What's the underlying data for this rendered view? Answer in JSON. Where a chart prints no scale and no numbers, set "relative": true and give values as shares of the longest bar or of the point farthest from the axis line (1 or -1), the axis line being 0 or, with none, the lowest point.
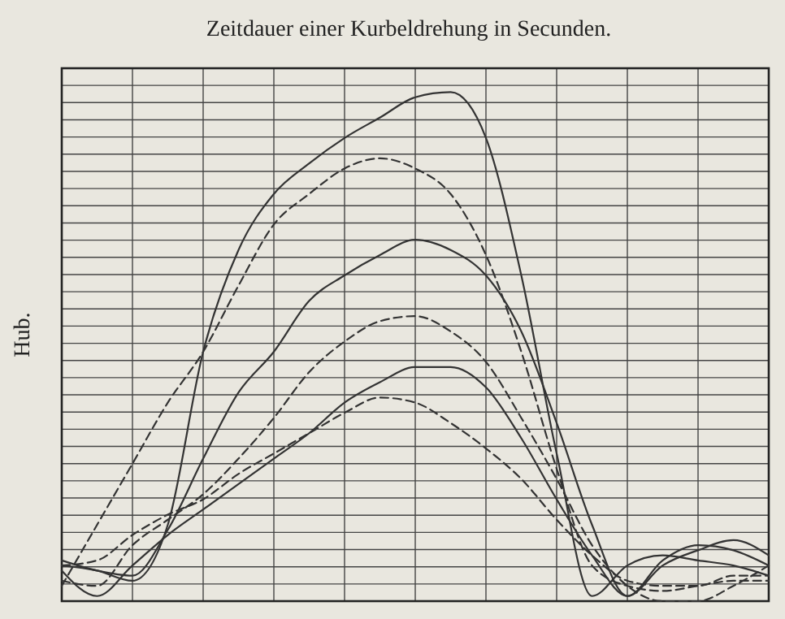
{
  "chart_data": {
    "type": "line",
    "title": "Zeitdauer einer Kurbeldrehung in Secunden.",
    "ylabel": "Hub.",
    "relative": true,
    "grid": true,
    "marker": "none",
    "categories": [
      null,
      null,
      null,
      null,
      null,
      null,
      null,
      null,
      null,
      null,
      null,
      null,
      null,
      null,
      null,
      null,
      null,
      null,
      null,
      null,
      null
    ],
    "series": [
      {
        "color": "#333333",
        "line_style": "solid",
        "values": [
          0.07,
          0.06,
          0.04,
          0.15,
          0.49,
          0.69,
          0.8,
          0.86,
          0.91,
          0.95,
          0.99,
          1.0,
          0.91,
          0.64,
          0.29,
          0.01,
          0.07,
          0.09,
          0.08,
          0.07,
          0.05
        ]
      },
      {
        "color": "#333333",
        "line_style": "dashed",
        "values": [
          0.03,
          0.15,
          0.27,
          0.39,
          0.49,
          0.62,
          0.74,
          0.8,
          0.85,
          0.87,
          0.85,
          0.8,
          0.68,
          0.49,
          0.26,
          0.07,
          0.03,
          0.02,
          0.03,
          0.04,
          0.04
        ]
      },
      {
        "color": "#333333",
        "line_style": "solid",
        "values": [
          0.08,
          0.06,
          0.05,
          0.14,
          0.28,
          0.41,
          0.49,
          0.59,
          0.64,
          0.68,
          0.71,
          0.69,
          0.64,
          0.53,
          0.35,
          0.15,
          0.01,
          0.08,
          0.11,
          0.1,
          0.07
        ]
      },
      {
        "color": "#333333",
        "line_style": "dashed",
        "values": [
          0.04,
          0.03,
          0.11,
          0.16,
          0.21,
          0.28,
          0.36,
          0.45,
          0.51,
          0.55,
          0.56,
          0.53,
          0.47,
          0.36,
          0.24,
          0.11,
          0.03,
          0.0,
          0.0,
          0.03,
          0.07
        ]
      },
      {
        "color": "#333333",
        "line_style": "solid",
        "values": [
          0.06,
          0.01,
          0.07,
          0.13,
          0.18,
          0.23,
          0.28,
          0.33,
          0.39,
          0.43,
          0.46,
          0.46,
          0.42,
          0.32,
          0.2,
          0.09,
          0.01,
          0.07,
          0.1,
          0.12,
          0.09
        ]
      },
      {
        "color": "#333333",
        "line_style": "dashed",
        "values": [
          0.07,
          0.08,
          0.13,
          0.17,
          0.2,
          0.25,
          0.29,
          0.33,
          0.37,
          0.4,
          0.39,
          0.35,
          0.3,
          0.24,
          0.16,
          0.09,
          0.04,
          0.03,
          0.03,
          0.05,
          0.05
        ]
      }
    ]
  }
}
